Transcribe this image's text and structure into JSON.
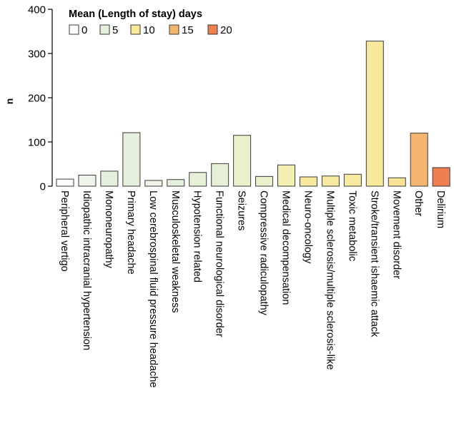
{
  "chart_data": {
    "type": "bar",
    "ylabel": "n",
    "ylim": [
      0,
      400
    ],
    "yticks": [
      0,
      100,
      200,
      300,
      400
    ],
    "grid": false,
    "legend": {
      "title": "Mean (Length of stay) days",
      "placement": "top-left",
      "entries": [
        {
          "label": "0",
          "color": "#ffffff"
        },
        {
          "label": "5",
          "color": "#e4efdc"
        },
        {
          "label": "10",
          "color": "#f8e89a"
        },
        {
          "label": "15",
          "color": "#f3b56f"
        },
        {
          "label": "20",
          "color": "#ef7f4e"
        }
      ]
    },
    "categories": [
      "Peripheral vertigo",
      "Idiopathic intracranial hypertension",
      "Mononeuropathy",
      "Primary headache",
      "Low cerebrospinal fluid pressure headache",
      "Musculoskeletal weakness",
      "Hypotension related",
      "Functional neurological disorder",
      "Seizures",
      "Compressive radiculopathy",
      "Medical decompensation",
      "Neuro-oncology",
      "Multiple sclerosis/multiple sclerosis-like",
      "Toxic metabolic",
      "Stroke/transient ishaemic attack",
      "Movement disorder",
      "Other",
      "Delirium"
    ],
    "values": [
      16,
      25,
      34,
      121,
      13,
      15,
      31,
      51,
      115,
      22,
      48,
      21,
      23,
      27,
      328,
      19,
      120,
      42
    ],
    "bar_colors": [
      "#ffffff",
      "#eef4ea",
      "#e4efdc",
      "#e4efdc",
      "#eef4ea",
      "#e4efdc",
      "#e6f0d6",
      "#e6f0d6",
      "#e8f1cc",
      "#e8f1cc",
      "#f3efb0",
      "#f7e9a0",
      "#f7e9a0",
      "#f7e9a0",
      "#f8e89a",
      "#f6e293",
      "#f3b56f",
      "#ef7f4e"
    ]
  }
}
